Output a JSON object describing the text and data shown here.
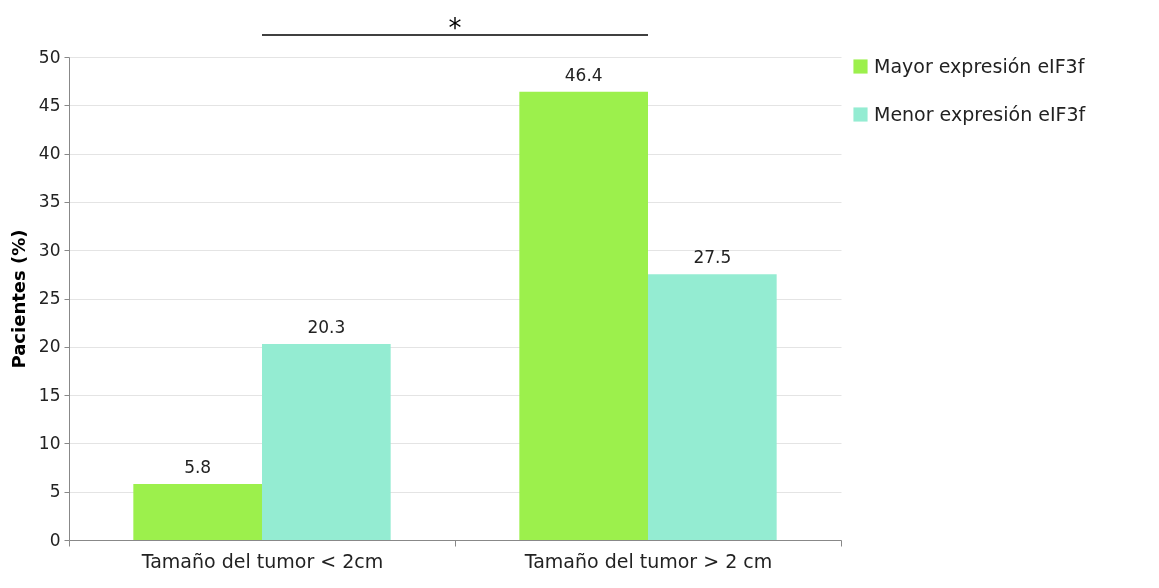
{
  "chart_data": {
    "type": "bar",
    "ylabel": "Pacientes (%)",
    "categories": [
      "Tamaño del tumor < 2cm",
      "Tamaño del tumor > 2 cm"
    ],
    "series": [
      {
        "name": "Mayor expresión eIF3f",
        "color": "#9cf04c",
        "values": [
          5.8,
          46.4
        ]
      },
      {
        "name": "Menor expresión eIF3f",
        "color": "#94ecd2",
        "values": [
          20.3,
          27.5
        ]
      }
    ],
    "ylim": [
      0,
      50
    ],
    "yticks": [
      0,
      5,
      10,
      15,
      20,
      25,
      30,
      35,
      40,
      45,
      50
    ],
    "grid": "y",
    "legend": "right",
    "data_labels": true,
    "annotations": [
      "*"
    ]
  }
}
